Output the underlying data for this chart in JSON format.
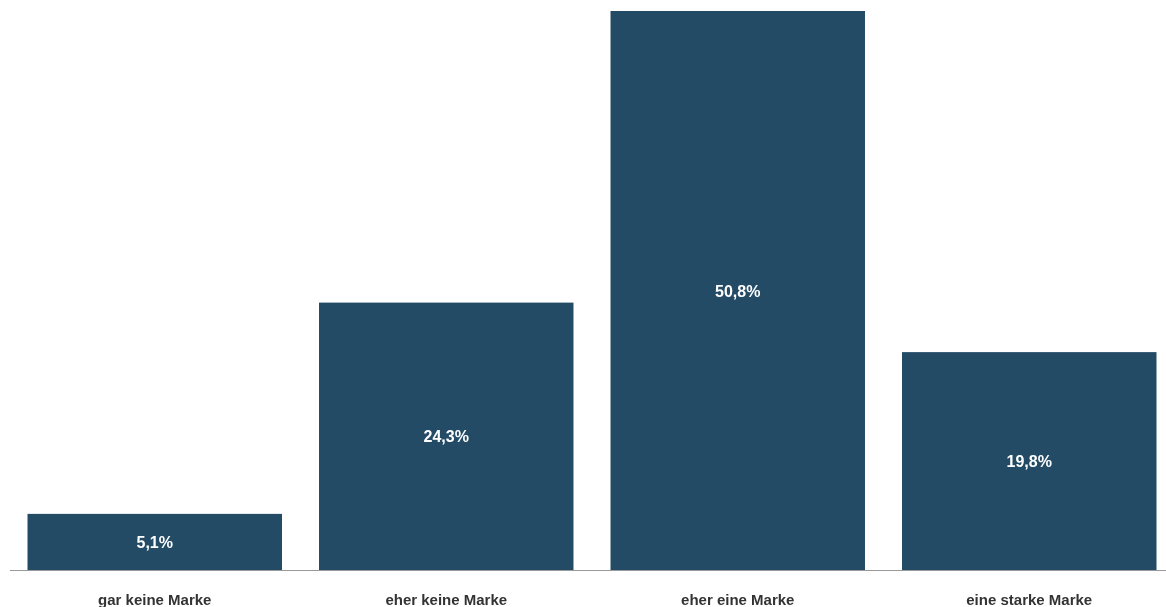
{
  "chart_data": {
    "type": "bar",
    "categories": [
      "gar keine Marke",
      "eher keine Marke",
      "eher eine Marke",
      "eine starke Marke"
    ],
    "values": [
      5.1,
      24.3,
      50.8,
      19.8
    ],
    "value_labels": [
      "5,1%",
      "24,3%",
      "50,8%",
      "19,8%"
    ],
    "color": "#244b66"
  }
}
